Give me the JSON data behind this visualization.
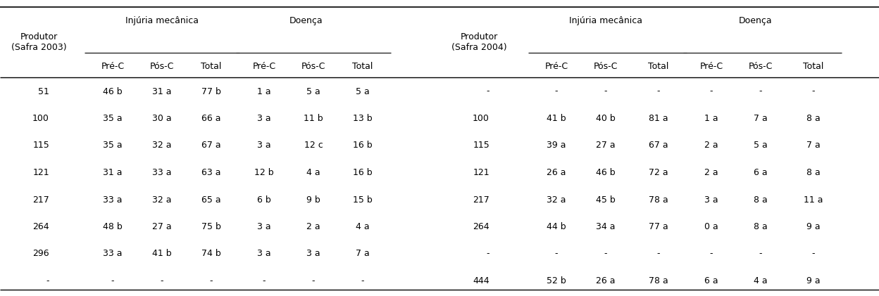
{
  "rows_left": [
    [
      "51",
      "46 b",
      "31 a",
      "77 b",
      "1 a",
      "5 a",
      "5 a"
    ],
    [
      "100",
      "35 a",
      "30 a",
      "66 a",
      "3 a",
      "11 b",
      "13 b"
    ],
    [
      "115",
      "35 a",
      "32 a",
      "67 a",
      "3 a",
      "12 c",
      "16 b"
    ],
    [
      "121",
      "31 a",
      "33 a",
      "63 a",
      "12 b",
      "4 a",
      "16 b"
    ],
    [
      "217",
      "33 a",
      "32 a",
      "65 a",
      "6 b",
      "9 b",
      "15 b"
    ],
    [
      "264",
      "48 b",
      "27 a",
      "75 b",
      "3 a",
      "2 a",
      "4 a"
    ],
    [
      "296",
      "33 a",
      "41 b",
      "74 b",
      "3 a",
      "3 a",
      "7 a"
    ],
    [
      "-",
      "-",
      "-",
      "-",
      "-",
      "-",
      "-"
    ]
  ],
  "rows_right": [
    [
      "-",
      "-",
      "-",
      "-",
      "-",
      "-",
      "-"
    ],
    [
      "100",
      "41 b",
      "40 b",
      "81 a",
      "1 a",
      "7 a",
      "8 a"
    ],
    [
      "115",
      "39 a",
      "27 a",
      "67 a",
      "2 a",
      "5 a",
      "7 a"
    ],
    [
      "121",
      "26 a",
      "46 b",
      "72 a",
      "2 a",
      "6 a",
      "8 a"
    ],
    [
      "217",
      "32 a",
      "45 b",
      "78 a",
      "3 a",
      "8 a",
      "11 a"
    ],
    [
      "264",
      "44 b",
      "34 a",
      "77 a",
      "0 a",
      "8 a",
      "9 a"
    ],
    [
      "-",
      "-",
      "-",
      "-",
      "-",
      "-",
      "-"
    ],
    [
      "444",
      "52 b",
      "26 a",
      "78 a",
      "6 a",
      "4 a",
      "9 a"
    ]
  ],
  "bg_color": "#ffffff",
  "text_color": "#000000",
  "font_size": 9.0
}
